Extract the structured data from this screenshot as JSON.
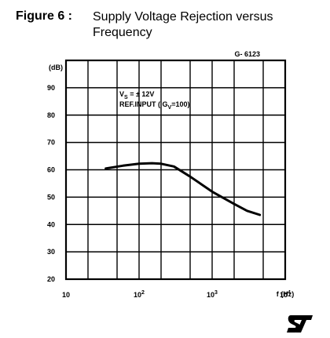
{
  "figure": {
    "label": "Figure 6 :",
    "title": "Supply Voltage Rejection versus Frequency",
    "code": "G- 6123"
  },
  "chart_data": {
    "type": "line",
    "title": "Supply Voltage Rejection versus Frequency",
    "xlabel": "f (Hz)",
    "ylabel": "(dB)",
    "x_scale": "log",
    "xlim": [
      10,
      10000
    ],
    "ylim": [
      20,
      100
    ],
    "grid": true,
    "x_ticks": [
      10,
      100,
      1000,
      10000
    ],
    "x_tick_labels": [
      {
        "base": "10",
        "exp": ""
      },
      {
        "base": "10",
        "exp": "2"
      },
      {
        "base": "10",
        "exp": "3"
      },
      {
        "base": "10",
        "exp": "4"
      }
    ],
    "y_ticks": [
      20,
      30,
      40,
      50,
      60,
      70,
      80,
      90
    ],
    "y_tick_labels": [
      "20",
      "30",
      "40",
      "50",
      "60",
      "70",
      "80",
      "90"
    ],
    "annotations": {
      "line1_main": "V",
      "line1_sub": "S",
      "line1_rest": " = ± 12V",
      "line2_main": "REF.INPUT ( G",
      "line2_sub": "V",
      "line2_rest": "=100)"
    },
    "series": [
      {
        "color": "#000000",
        "x": [
          35,
          60,
          100,
          150,
          200,
          300,
          500,
          1000,
          2000,
          3000,
          4500
        ],
        "y": [
          60.5,
          61.5,
          62.2,
          62.4,
          62.2,
          61.2,
          57.5,
          52.0,
          47.5,
          45.0,
          43.5
        ]
      }
    ]
  },
  "logo": {
    "text": "ST"
  }
}
